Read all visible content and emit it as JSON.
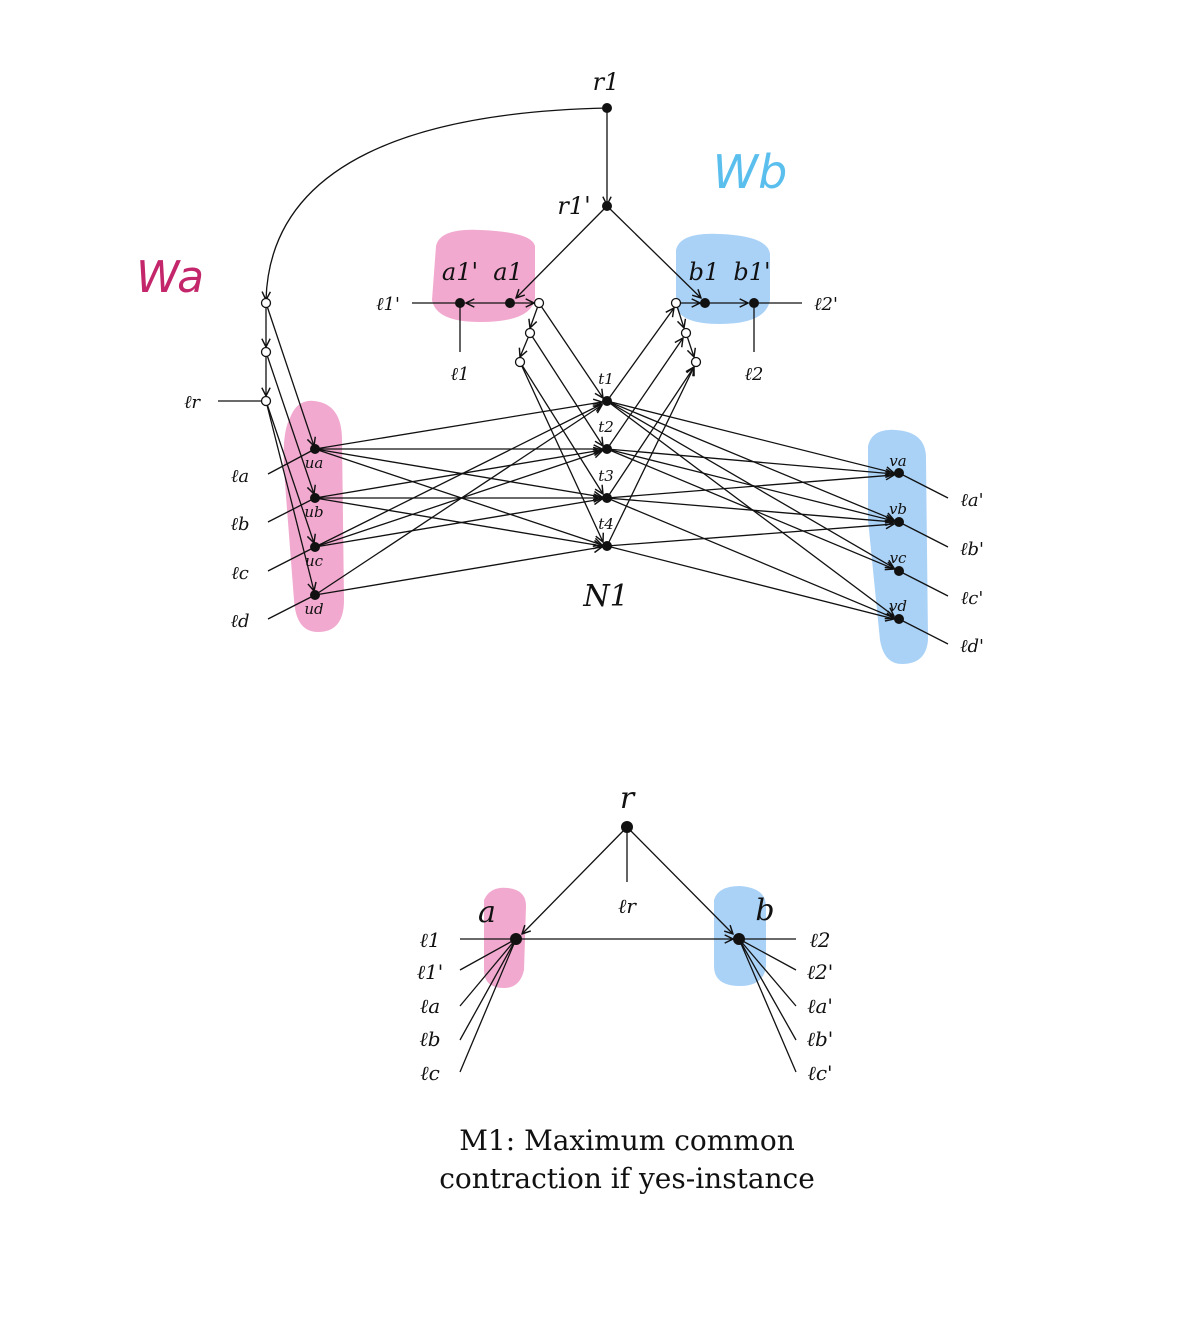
{
  "annotations": {
    "wa": "Wa",
    "wb": "Wb",
    "wa_color": "#c4266b",
    "wb_color": "#5bbfee",
    "pink_highlight": "#f2a9cf",
    "blue_highlight": "#aad2f7"
  },
  "network": {
    "label": "N1",
    "nodes": {
      "r1": "r1",
      "r1p": "r1'",
      "a1": "a1",
      "a1p": "a1'",
      "b1": "b1",
      "b1p": "b1'",
      "t1": "t1",
      "t2": "t2",
      "t3": "t3",
      "t4": "t4",
      "ua": "ua",
      "ub": "ub",
      "uc": "uc",
      "ud": "ud",
      "va": "va",
      "vb": "vb",
      "vc": "vc",
      "vd": "vd"
    },
    "leaves": {
      "l1p": "ℓ1'",
      "l1": "ℓ1",
      "l2p": "ℓ2'",
      "l2": "ℓ2",
      "lr": "ℓr",
      "la": "ℓa",
      "lb": "ℓb",
      "lc": "ℓc",
      "ld": "ℓd",
      "lap": "ℓa'",
      "lbp": "ℓb'",
      "lcp": "ℓc'",
      "ldp": "ℓd'"
    }
  },
  "tree": {
    "nodes": {
      "r": "r",
      "a": "a",
      "b": "b"
    },
    "leaves": {
      "lr": "ℓr",
      "left": [
        "ℓ1",
        "ℓ1'",
        "ℓa",
        "ℓb",
        "ℓc"
      ],
      "right": [
        "ℓ2",
        "ℓ2'",
        "ℓa'",
        "ℓb'",
        "ℓc'"
      ]
    },
    "caption_line1": "M1: Maximum common",
    "caption_line2": "contraction if yes-instance"
  }
}
